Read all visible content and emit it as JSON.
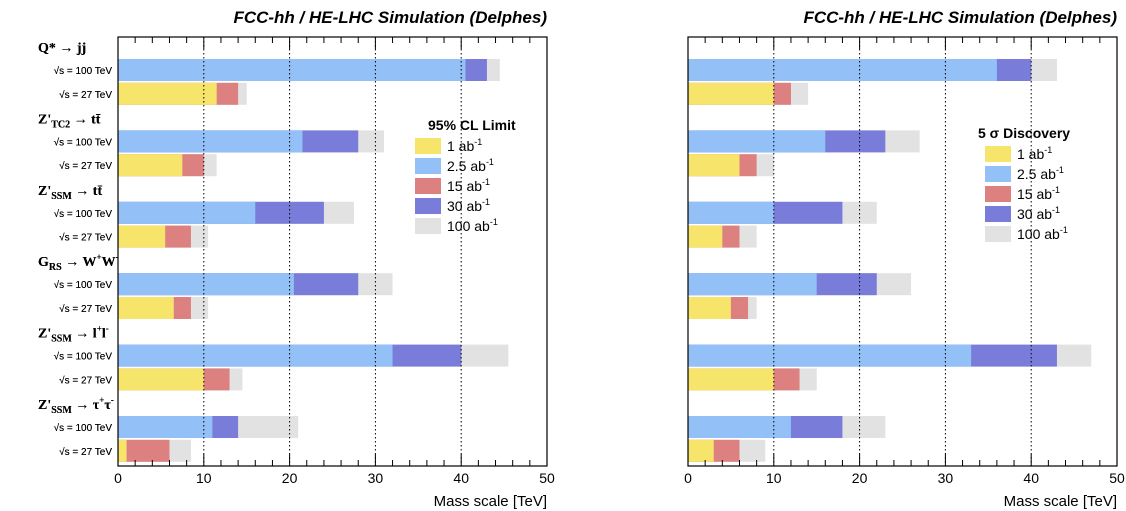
{
  "chart_data": [
    {
      "type": "bar",
      "orientation": "horizontal",
      "stacked": "overlaid",
      "title": "FCC-hh / HE-LHC Simulation (Delphes)",
      "xlabel": "Mass scale [TeV]",
      "xlim": [
        0,
        50
      ],
      "xticks": [
        "0",
        "10",
        "20",
        "30",
        "40",
        "50"
      ],
      "grid": "vertical dotted lines at 10, 20, 30, 40",
      "legend_title": "95% CL Limit",
      "legend_position": "right",
      "processes": [
        {
          "name": "Q* → jj",
          "rows": [
            {
              "label": "√s = 100 TeV",
              "bars": [
                {
                  "lumi": "2.5 ab-1",
                  "value": 40.5
                },
                {
                  "lumi": "30 ab-1",
                  "value": 43
                },
                {
                  "lumi": "100 ab-1",
                  "value": 44.5
                }
              ]
            },
            {
              "label": "√s = 27 TeV",
              "bars": [
                {
                  "lumi": "1 ab-1",
                  "value": 11.5
                },
                {
                  "lumi": "15 ab-1",
                  "value": 14
                },
                {
                  "lumi": "100 ab-1",
                  "value": 15
                }
              ]
            }
          ]
        },
        {
          "name": "Z'TC2 → tt̄",
          "rows": [
            {
              "label": "√s = 100 TeV",
              "bars": [
                {
                  "lumi": "2.5 ab-1",
                  "value": 21.5
                },
                {
                  "lumi": "30 ab-1",
                  "value": 28
                },
                {
                  "lumi": "100 ab-1",
                  "value": 31
                }
              ]
            },
            {
              "label": "√s = 27 TeV",
              "bars": [
                {
                  "lumi": "1 ab-1",
                  "value": 7.5
                },
                {
                  "lumi": "15 ab-1",
                  "value": 10
                },
                {
                  "lumi": "100 ab-1",
                  "value": 11.5
                }
              ]
            }
          ]
        },
        {
          "name": "Z'SSM → tt̄",
          "rows": [
            {
              "label": "√s = 100 TeV",
              "bars": [
                {
                  "lumi": "2.5 ab-1",
                  "value": 16
                },
                {
                  "lumi": "30 ab-1",
                  "value": 24
                },
                {
                  "lumi": "100 ab-1",
                  "value": 27.5
                }
              ]
            },
            {
              "label": "√s = 27 TeV",
              "bars": [
                {
                  "lumi": "1 ab-1",
                  "value": 5.5
                },
                {
                  "lumi": "15 ab-1",
                  "value": 8.5
                },
                {
                  "lumi": "100 ab-1",
                  "value": 10.5
                }
              ]
            }
          ]
        },
        {
          "name": "GRS → W+W-",
          "rows": [
            {
              "label": "√s = 100 TeV",
              "bars": [
                {
                  "lumi": "2.5 ab-1",
                  "value": 20.5
                },
                {
                  "lumi": "30 ab-1",
                  "value": 28
                },
                {
                  "lumi": "100 ab-1",
                  "value": 32
                }
              ]
            },
            {
              "label": "√s = 27 TeV",
              "bars": [
                {
                  "lumi": "1 ab-1",
                  "value": 6.5
                },
                {
                  "lumi": "15 ab-1",
                  "value": 8.5
                },
                {
                  "lumi": "100 ab-1",
                  "value": 10.5
                }
              ]
            }
          ]
        },
        {
          "name": "Z'SSM → l+l-",
          "rows": [
            {
              "label": "√s = 100 TeV",
              "bars": [
                {
                  "lumi": "2.5 ab-1",
                  "value": 32
                },
                {
                  "lumi": "30 ab-1",
                  "value": 40
                },
                {
                  "lumi": "100 ab-1",
                  "value": 45.5
                }
              ]
            },
            {
              "label": "√s = 27 TeV",
              "bars": [
                {
                  "lumi": "1 ab-1",
                  "value": 10
                },
                {
                  "lumi": "15 ab-1",
                  "value": 13
                },
                {
                  "lumi": "100 ab-1",
                  "value": 14.5
                }
              ]
            }
          ]
        },
        {
          "name": "Z'SSM → τ+τ-",
          "rows": [
            {
              "label": "√s = 100 TeV",
              "bars": [
                {
                  "lumi": "2.5 ab-1",
                  "value": 11
                },
                {
                  "lumi": "30 ab-1",
                  "value": 14
                },
                {
                  "lumi": "100 ab-1",
                  "value": 21
                }
              ]
            },
            {
              "label": "√s = 27 TeV",
              "bars": [
                {
                  "lumi": "1 ab-1",
                  "value": 1
                },
                {
                  "lumi": "15 ab-1",
                  "value": 6
                },
                {
                  "lumi": "100 ab-1",
                  "value": 8.5
                }
              ]
            }
          ]
        }
      ]
    },
    {
      "type": "bar",
      "orientation": "horizontal",
      "stacked": "overlaid",
      "title": "FCC-hh / HE-LHC Simulation (Delphes)",
      "xlabel": "Mass scale [TeV]",
      "xlim": [
        0,
        50
      ],
      "xticks": [
        "0",
        "10",
        "20",
        "30",
        "40",
        "50"
      ],
      "grid": "vertical dotted lines at 10, 20, 30, 40",
      "legend_title": "5 σ Discovery",
      "legend_position": "right",
      "processes": [
        {
          "name": "Q* → jj",
          "rows": [
            {
              "label": "√s = 100 TeV",
              "bars": [
                {
                  "lumi": "2.5 ab-1",
                  "value": 36
                },
                {
                  "lumi": "30 ab-1",
                  "value": 40
                },
                {
                  "lumi": "100 ab-1",
                  "value": 43
                }
              ]
            },
            {
              "label": "√s = 27 TeV",
              "bars": [
                {
                  "lumi": "1 ab-1",
                  "value": 10
                },
                {
                  "lumi": "15 ab-1",
                  "value": 12
                },
                {
                  "lumi": "100 ab-1",
                  "value": 14
                }
              ]
            }
          ]
        },
        {
          "name": "Z'TC2 → tt̄",
          "rows": [
            {
              "label": "√s = 100 TeV",
              "bars": [
                {
                  "lumi": "2.5 ab-1",
                  "value": 16
                },
                {
                  "lumi": "30 ab-1",
                  "value": 23
                },
                {
                  "lumi": "100 ab-1",
                  "value": 27
                }
              ]
            },
            {
              "label": "√s = 27 TeV",
              "bars": [
                {
                  "lumi": "1 ab-1",
                  "value": 6
                },
                {
                  "lumi": "15 ab-1",
                  "value": 8
                },
                {
                  "lumi": "100 ab-1",
                  "value": 10
                }
              ]
            }
          ]
        },
        {
          "name": "Z'SSM → tt̄",
          "rows": [
            {
              "label": "√s = 100 TeV",
              "bars": [
                {
                  "lumi": "2.5 ab-1",
                  "value": 10
                },
                {
                  "lumi": "30 ab-1",
                  "value": 18
                },
                {
                  "lumi": "100 ab-1",
                  "value": 22
                }
              ]
            },
            {
              "label": "√s = 27 TeV",
              "bars": [
                {
                  "lumi": "1 ab-1",
                  "value": 4
                },
                {
                  "lumi": "15 ab-1",
                  "value": 6
                },
                {
                  "lumi": "100 ab-1",
                  "value": 8
                }
              ]
            }
          ]
        },
        {
          "name": "GRS → W+W-",
          "rows": [
            {
              "label": "√s = 100 TeV",
              "bars": [
                {
                  "lumi": "2.5 ab-1",
                  "value": 15
                },
                {
                  "lumi": "30 ab-1",
                  "value": 22
                },
                {
                  "lumi": "100 ab-1",
                  "value": 26
                }
              ]
            },
            {
              "label": "√s = 27 TeV",
              "bars": [
                {
                  "lumi": "1 ab-1",
                  "value": 5
                },
                {
                  "lumi": "15 ab-1",
                  "value": 7
                },
                {
                  "lumi": "100 ab-1",
                  "value": 8
                }
              ]
            }
          ]
        },
        {
          "name": "Z'SSM → l+l-",
          "rows": [
            {
              "label": "√s = 100 TeV",
              "bars": [
                {
                  "lumi": "2.5 ab-1",
                  "value": 33
                },
                {
                  "lumi": "30 ab-1",
                  "value": 43
                },
                {
                  "lumi": "100 ab-1",
                  "value": 47
                }
              ]
            },
            {
              "label": "√s = 27 TeV",
              "bars": [
                {
                  "lumi": "1 ab-1",
                  "value": 10
                },
                {
                  "lumi": "15 ab-1",
                  "value": 13
                },
                {
                  "lumi": "100 ab-1",
                  "value": 15
                }
              ]
            }
          ]
        },
        {
          "name": "Z'SSM → τ+τ-",
          "rows": [
            {
              "label": "√s = 100 TeV",
              "bars": [
                {
                  "lumi": "2.5 ab-1",
                  "value": 12
                },
                {
                  "lumi": "30 ab-1",
                  "value": 18
                },
                {
                  "lumi": "100 ab-1",
                  "value": 23
                }
              ]
            },
            {
              "label": "√s = 27 TeV",
              "bars": [
                {
                  "lumi": "1 ab-1",
                  "value": 3
                },
                {
                  "lumi": "15 ab-1",
                  "value": 6
                },
                {
                  "lumi": "100 ab-1",
                  "value": 9
                }
              ]
            }
          ]
        }
      ]
    }
  ],
  "legend": [
    {
      "label": "1 ab-1",
      "color": "#f7e46b"
    },
    {
      "label": "2.5 ab-1",
      "color": "#92c0f7"
    },
    {
      "label": "15 ab-1",
      "color": "#dd8080"
    },
    {
      "label": "30 ab-1",
      "color": "#7a7cd9"
    },
    {
      "label": "100 ab-1",
      "color": "#e2e2e2"
    }
  ]
}
